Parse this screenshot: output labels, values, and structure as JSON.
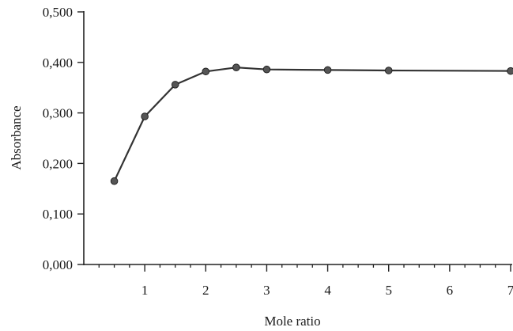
{
  "chart_data": {
    "type": "line",
    "xlabel": "Mole ratio",
    "ylabel": "Absorbance",
    "xlim": [
      0,
      7
    ],
    "ylim": [
      0,
      0.5
    ],
    "x_ticks": [
      1,
      2,
      3,
      4,
      5,
      6,
      7
    ],
    "x_tick_labels": [
      "1",
      "2",
      "3",
      "4",
      "5",
      "6",
      "7"
    ],
    "x_minor_step": 0.25,
    "y_ticks": [
      0,
      0.1,
      0.2,
      0.3,
      0.4,
      0.5
    ],
    "y_tick_labels": [
      "0,000",
      "0,100",
      "0,200",
      "0,300",
      "0,400",
      "0,500"
    ],
    "grid": false,
    "series": [
      {
        "x": [
          0.5,
          1,
          1.5,
          2,
          2.5,
          3,
          4,
          5,
          7
        ],
        "y": [
          0.165,
          0.293,
          0.356,
          0.382,
          0.39,
          0.386,
          0.385,
          0.384,
          0.383
        ],
        "color": "#333333",
        "marker_color": "#555555"
      }
    ]
  }
}
